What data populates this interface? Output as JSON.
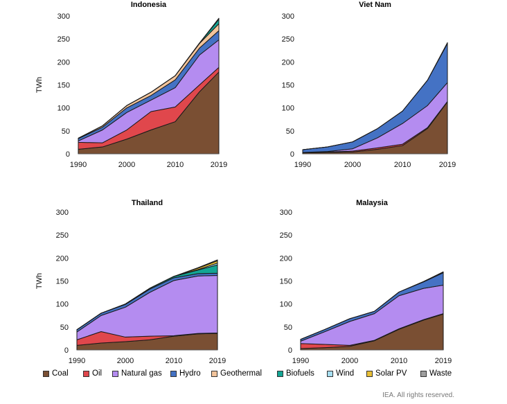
{
  "legend": [
    {
      "key": "coal",
      "label": "Coal",
      "color": "#7a4f33"
    },
    {
      "key": "oil",
      "label": "Oil",
      "color": "#e0474c"
    },
    {
      "key": "gas",
      "label": "Natural gas",
      "color": "#b48cf0"
    },
    {
      "key": "hydro",
      "label": "Hydro",
      "color": "#4472c4"
    },
    {
      "key": "geo",
      "label": "Geothermal",
      "color": "#f2c49b"
    },
    {
      "key": "bio",
      "label": "Biofuels",
      "color": "#13a594"
    },
    {
      "key": "wind",
      "label": "Wind",
      "color": "#a7dff2"
    },
    {
      "key": "solar",
      "label": "Solar PV",
      "color": "#e8bf36"
    },
    {
      "key": "waste",
      "label": "Waste",
      "color": "#9e9e9e"
    }
  ],
  "credit": "IEA. All rights reserved.",
  "chart_data": [
    {
      "type": "area",
      "title": "Indonesia",
      "ylabel": "TWh",
      "ylim": [
        0,
        300
      ],
      "yticks": [
        0,
        50,
        100,
        150,
        200,
        250,
        300
      ],
      "xticks": [
        "1990",
        "2000",
        "2010",
        "2019"
      ],
      "x": [
        1990,
        1995,
        2000,
        2005,
        2010,
        2015,
        2019
      ],
      "series": [
        {
          "name": "Coal",
          "key": "coal",
          "values": [
            10,
            15,
            32,
            52,
            70,
            135,
            178
          ]
        },
        {
          "name": "Oil",
          "key": "oil",
          "values": [
            15,
            9,
            20,
            40,
            32,
            15,
            10
          ]
        },
        {
          "name": "Natural gas",
          "key": "gas",
          "values": [
            3,
            28,
            38,
            25,
            42,
            65,
            60
          ]
        },
        {
          "name": "Hydro",
          "key": "hydro",
          "values": [
            5,
            6,
            10,
            10,
            17,
            15,
            20
          ]
        },
        {
          "name": "Geothermal",
          "key": "geo",
          "values": [
            1,
            3,
            5,
            7,
            9,
            10,
            15
          ]
        },
        {
          "name": "Biofuels",
          "key": "bio",
          "values": [
            0,
            0,
            0,
            0,
            0,
            1,
            10
          ]
        },
        {
          "name": "Wind",
          "key": "wind",
          "values": [
            0,
            0,
            0,
            0,
            0,
            0,
            1
          ]
        },
        {
          "name": "Solar PV",
          "key": "solar",
          "values": [
            0,
            0,
            0,
            0,
            0,
            0,
            1
          ]
        },
        {
          "name": "Waste",
          "key": "waste",
          "values": [
            0,
            0,
            0,
            0,
            0,
            0,
            0
          ]
        }
      ]
    },
    {
      "type": "area",
      "title": "Viet Nam",
      "ylabel": "",
      "ylim": [
        0,
        300
      ],
      "yticks": [
        0,
        50,
        100,
        150,
        200,
        250,
        300
      ],
      "xticks": [
        "1990",
        "2000",
        "2010",
        "2019"
      ],
      "x": [
        1990,
        1995,
        2000,
        2005,
        2010,
        2015,
        2019
      ],
      "series": [
        {
          "name": "Coal",
          "key": "coal",
          "values": [
            2,
            3,
            4,
            10,
            18,
            55,
            113
          ]
        },
        {
          "name": "Oil",
          "key": "oil",
          "values": [
            1,
            1,
            2,
            3,
            3,
            2,
            1
          ]
        },
        {
          "name": "Natural gas",
          "key": "gas",
          "values": [
            0,
            1,
            5,
            22,
            45,
            48,
            41
          ]
        },
        {
          "name": "Hydro",
          "key": "hydro",
          "values": [
            6,
            10,
            15,
            20,
            27,
            55,
            85
          ]
        },
        {
          "name": "Geothermal",
          "key": "geo",
          "values": [
            0,
            0,
            0,
            0,
            0,
            0,
            0
          ]
        },
        {
          "name": "Biofuels",
          "key": "bio",
          "values": [
            0,
            0,
            0,
            0,
            0,
            0,
            0
          ]
        },
        {
          "name": "Wind",
          "key": "wind",
          "values": [
            0,
            0,
            0,
            0,
            0,
            0,
            1
          ]
        },
        {
          "name": "Solar PV",
          "key": "solar",
          "values": [
            0,
            0,
            0,
            0,
            0,
            0,
            1
          ]
        },
        {
          "name": "Waste",
          "key": "waste",
          "values": [
            0,
            0,
            0,
            0,
            0,
            0,
            0
          ]
        }
      ]
    },
    {
      "type": "area",
      "title": "Thailand",
      "ylabel": "TWh",
      "ylim": [
        0,
        300
      ],
      "yticks": [
        0,
        50,
        100,
        150,
        200,
        250,
        300
      ],
      "xticks": [
        "1990",
        "2000",
        "2010",
        "2019"
      ],
      "x": [
        1990,
        1995,
        2000,
        2005,
        2010,
        2015,
        2019
      ],
      "series": [
        {
          "name": "Coal",
          "key": "coal",
          "values": [
            10,
            15,
            18,
            22,
            30,
            35,
            36
          ]
        },
        {
          "name": "Oil",
          "key": "oil",
          "values": [
            12,
            25,
            10,
            8,
            1,
            1,
            1
          ]
        },
        {
          "name": "Natural gas",
          "key": "gas",
          "values": [
            17,
            35,
            65,
            95,
            120,
            125,
            125
          ]
        },
        {
          "name": "Hydro",
          "key": "hydro",
          "values": [
            5,
            5,
            6,
            7,
            6,
            5,
            5
          ]
        },
        {
          "name": "Geothermal",
          "key": "geo",
          "values": [
            0,
            0,
            0,
            0,
            0,
            0,
            0
          ]
        },
        {
          "name": "Biofuels",
          "key": "bio",
          "values": [
            0,
            0,
            1,
            2,
            3,
            8,
            18
          ]
        },
        {
          "name": "Wind",
          "key": "wind",
          "values": [
            0,
            0,
            0,
            0,
            0,
            1,
            4
          ]
        },
        {
          "name": "Solar PV",
          "key": "solar",
          "values": [
            0,
            0,
            0,
            0,
            0,
            3,
            5
          ]
        },
        {
          "name": "Waste",
          "key": "waste",
          "values": [
            0,
            0,
            0,
            0,
            0,
            1,
            2
          ]
        }
      ]
    },
    {
      "type": "area",
      "title": "Malaysia",
      "ylabel": "",
      "ylim": [
        0,
        300
      ],
      "yticks": [
        0,
        50,
        100,
        150,
        200,
        250,
        300
      ],
      "xticks": [
        "1990",
        "2000",
        "2010",
        "2019"
      ],
      "x": [
        1990,
        1995,
        2000,
        2005,
        2010,
        2015,
        2019
      ],
      "series": [
        {
          "name": "Coal",
          "key": "coal",
          "values": [
            3,
            5,
            8,
            20,
            45,
            65,
            78
          ]
        },
        {
          "name": "Oil",
          "key": "oil",
          "values": [
            11,
            7,
            2,
            1,
            1,
            1,
            1
          ]
        },
        {
          "name": "Natural gas",
          "key": "gas",
          "values": [
            5,
            28,
            52,
            58,
            72,
            68,
            62
          ]
        },
        {
          "name": "Hydro",
          "key": "hydro",
          "values": [
            4,
            5,
            6,
            5,
            8,
            14,
            27
          ]
        },
        {
          "name": "Geothermal",
          "key": "geo",
          "values": [
            0,
            0,
            0,
            0,
            0,
            0,
            0
          ]
        },
        {
          "name": "Biofuels",
          "key": "bio",
          "values": [
            0,
            0,
            0,
            0,
            0,
            1,
            1
          ]
        },
        {
          "name": "Wind",
          "key": "wind",
          "values": [
            0,
            0,
            0,
            0,
            0,
            0,
            0
          ]
        },
        {
          "name": "Solar PV",
          "key": "solar",
          "values": [
            0,
            0,
            0,
            0,
            0,
            0,
            1
          ]
        },
        {
          "name": "Waste",
          "key": "waste",
          "values": [
            0,
            0,
            0,
            0,
            0,
            0,
            0
          ]
        }
      ]
    }
  ]
}
